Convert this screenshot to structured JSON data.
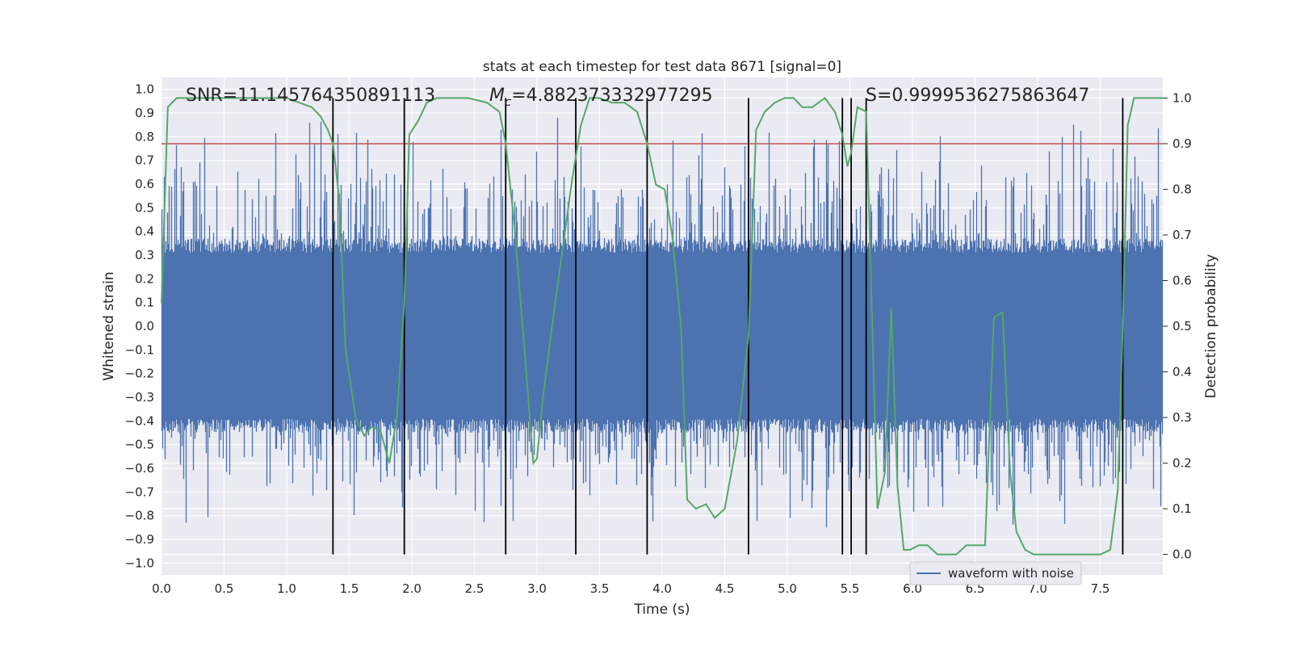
{
  "chart_data": {
    "type": "line",
    "title": "stats at each timestep for test data 8671 [signal=0]",
    "xlabel": "Time (s)",
    "ylabel": "Whitened strain",
    "y2label": "Detection probability",
    "xlim": [
      0.0,
      8.0
    ],
    "ylim": [
      -1.05,
      1.05
    ],
    "y2lim": [
      -0.045,
      1.045
    ],
    "xticks": [
      "0.0",
      "0.5",
      "1.0",
      "1.5",
      "2.0",
      "2.5",
      "3.0",
      "3.5",
      "4.0",
      "4.5",
      "5.0",
      "5.5",
      "6.0",
      "6.5",
      "7.0",
      "7.5"
    ],
    "xtick_values": [
      0.0,
      0.5,
      1.0,
      1.5,
      2.0,
      2.5,
      3.0,
      3.5,
      4.0,
      4.5,
      5.0,
      5.5,
      6.0,
      6.5,
      7.0,
      7.5
    ],
    "yticks": [
      "1.0",
      "0.9",
      "0.8",
      "0.7",
      "0.6",
      "0.5",
      "0.4",
      "0.3",
      "0.2",
      "0.1",
      "0.0",
      "−0.1",
      "−0.2",
      "−0.3",
      "−0.4",
      "−0.5",
      "−0.6",
      "−0.7",
      "−0.8",
      "−0.9",
      "−1.0"
    ],
    "ytick_values": [
      1.0,
      0.9,
      0.8,
      0.7,
      0.6,
      0.5,
      0.4,
      0.3,
      0.2,
      0.1,
      0.0,
      -0.1,
      -0.2,
      -0.3,
      -0.4,
      -0.5,
      -0.6,
      -0.7,
      -0.8,
      -0.9,
      -1.0
    ],
    "y2ticks": [
      "1.0",
      "0.9",
      "0.8",
      "0.7",
      "0.6",
      "0.5",
      "0.4",
      "0.3",
      "0.2",
      "0.1",
      "0.0"
    ],
    "y2tick_values": [
      1.0,
      0.9,
      0.8,
      0.7,
      0.6,
      0.5,
      0.4,
      0.3,
      0.2,
      0.1,
      0.0
    ],
    "annotations": {
      "snr": "SNR=11.145764350891113",
      "mc_symbol": "M",
      "mc_sub": "c",
      "mc_value": "=4.882373332977295",
      "s": "S=0.9999536275863647"
    },
    "legend": {
      "label": "waveform with noise",
      "location": "lower-right"
    },
    "threshold": {
      "value": 0.9,
      "axis": "y2",
      "color": "#c44e52"
    },
    "vertical_lines": [
      1.37,
      1.94,
      2.75,
      3.31,
      3.88,
      4.69,
      5.44,
      5.51,
      5.63,
      7.68
    ],
    "probability_series": {
      "name": "detection probability",
      "x": [
        0.0,
        0.05,
        0.12,
        0.2,
        0.4,
        0.6,
        0.8,
        1.0,
        1.1,
        1.2,
        1.27,
        1.33,
        1.37,
        1.42,
        1.47,
        1.55,
        1.62,
        1.68,
        1.75,
        1.82,
        1.88,
        1.94,
        1.98,
        2.05,
        2.12,
        2.2,
        2.3,
        2.45,
        2.6,
        2.7,
        2.75,
        2.82,
        2.9,
        2.97,
        3.0,
        3.05,
        3.12,
        3.2,
        3.28,
        3.35,
        3.42,
        3.5,
        3.6,
        3.7,
        3.8,
        3.88,
        3.95,
        4.02,
        4.08,
        4.15,
        4.2,
        4.27,
        4.35,
        4.42,
        4.5,
        4.6,
        4.69,
        4.75,
        4.82,
        4.9,
        4.98,
        5.05,
        5.12,
        5.2,
        5.3,
        5.38,
        5.44,
        5.48,
        5.51,
        5.56,
        5.63,
        5.72,
        5.78,
        5.83,
        5.88,
        5.93,
        5.98,
        6.05,
        6.12,
        6.2,
        6.28,
        6.35,
        6.43,
        6.5,
        6.58,
        6.65,
        6.72,
        6.78,
        6.83,
        6.9,
        6.97,
        7.05,
        7.12,
        7.2,
        7.3,
        7.4,
        7.5,
        7.58,
        7.64,
        7.68,
        7.72,
        7.77,
        7.82,
        7.9,
        8.0
      ],
      "y": [
        0.55,
        0.98,
        1.0,
        1.0,
        1.0,
        1.0,
        1.0,
        1.0,
        0.99,
        0.98,
        0.96,
        0.93,
        0.9,
        0.78,
        0.45,
        0.3,
        0.26,
        0.28,
        0.27,
        0.2,
        0.3,
        0.55,
        0.92,
        0.95,
        0.99,
        1.0,
        1.0,
        1.0,
        0.99,
        0.97,
        0.9,
        0.72,
        0.45,
        0.2,
        0.21,
        0.35,
        0.5,
        0.66,
        0.82,
        0.94,
        1.0,
        1.0,
        0.99,
        0.99,
        0.97,
        0.9,
        0.81,
        0.8,
        0.7,
        0.5,
        0.12,
        0.1,
        0.11,
        0.08,
        0.1,
        0.25,
        0.48,
        0.93,
        0.97,
        0.99,
        1.0,
        1.0,
        0.98,
        0.98,
        1.0,
        0.97,
        0.92,
        0.85,
        0.88,
        0.98,
        0.97,
        0.1,
        0.18,
        0.54,
        0.15,
        0.01,
        0.01,
        0.02,
        0.02,
        0.0,
        0.0,
        0.0,
        0.02,
        0.02,
        0.02,
        0.52,
        0.53,
        0.18,
        0.05,
        0.01,
        0.0,
        0.0,
        0.0,
        0.0,
        0.0,
        0.0,
        0.0,
        0.01,
        0.14,
        0.5,
        0.94,
        1.0,
        1.0,
        1.0,
        1.0
      ],
      "color": "#55a868"
    },
    "waveform_series": {
      "name": "waveform with noise",
      "color": "#4c72b0",
      "description_range": [
        -0.85,
        0.91
      ],
      "typical_envelope": [
        -0.42,
        0.34
      ]
    }
  }
}
